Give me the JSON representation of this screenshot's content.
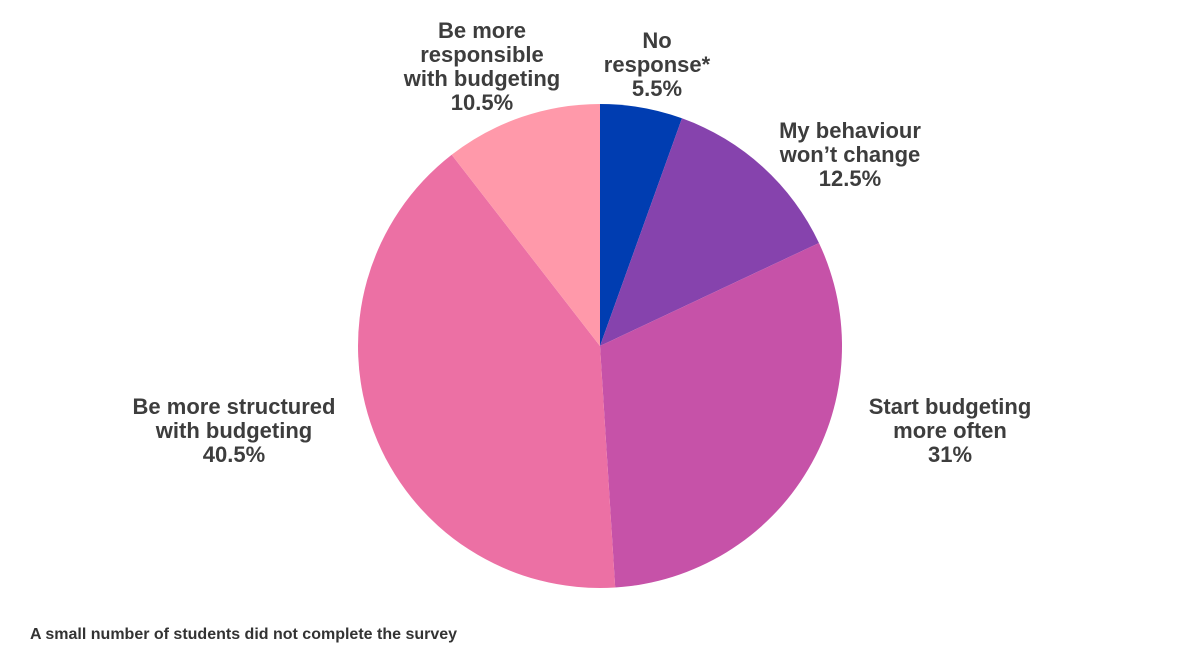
{
  "chart_data": {
    "type": "pie",
    "title": "",
    "start": "12 o'clock",
    "direction": "clockwise",
    "slices": [
      {
        "label_lines": [
          "No",
          "response*"
        ],
        "value": 5.5,
        "value_label": "5.5%",
        "color": "#003db1"
      },
      {
        "label_lines": [
          "My behaviour",
          "won’t change"
        ],
        "value": 12.5,
        "value_label": "12.5%",
        "color": "#8643ad"
      },
      {
        "label_lines": [
          "Start budgeting",
          "more often"
        ],
        "value": 31,
        "value_label": "31%",
        "color": "#c652a8"
      },
      {
        "label_lines": [
          "Be more structured",
          "with budgeting"
        ],
        "value": 40.5,
        "value_label": "40.5%",
        "color": "#ec70a4"
      },
      {
        "label_lines": [
          "Be more",
          "responsible",
          "with budgeting"
        ],
        "value": 10.5,
        "value_label": "10.5%",
        "color": "#ff99aa"
      }
    ]
  },
  "footnote": "A small number of students did not complete the survey"
}
